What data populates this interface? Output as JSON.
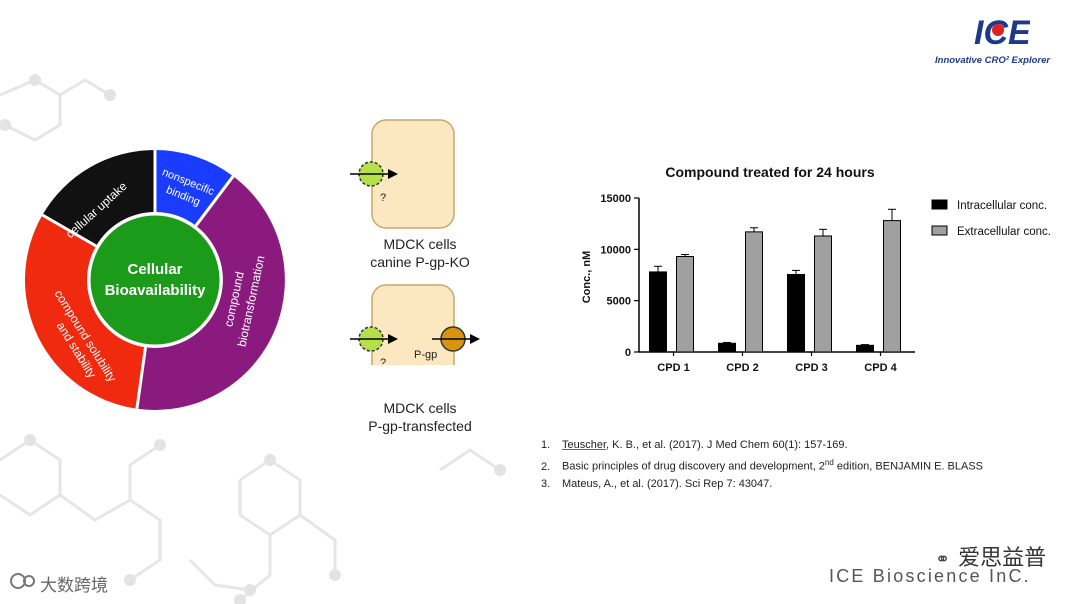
{
  "donut": {
    "center_line1": "Cellular",
    "center_line2": "Bioavailability",
    "segments": [
      {
        "label": "cellular uptake",
        "color": "#111111"
      },
      {
        "label": "nonspecific binding",
        "label_line1": "nonspecific",
        "label_line2": "binding",
        "color": "#1a3cff"
      },
      {
        "label": "compound biotransformation",
        "label_line1": "compound",
        "label_line2": "biotransformation",
        "color": "#8b1a7e"
      },
      {
        "label": "compound solubility and stability",
        "label_line1": "compound solubility",
        "label_line2": "and stability",
        "color": "#f02a0f"
      }
    ],
    "center_color": "#1c9a19"
  },
  "cells": [
    {
      "line1": "MDCK cells",
      "line2": "canine P-gp-KO",
      "question": "?"
    },
    {
      "line1": "MDCK cells",
      "line2": "P-gp-transfected",
      "question": "?",
      "pgp_label": "P-gp"
    }
  ],
  "chart_data": {
    "type": "bar",
    "title": "Compound treated for 24 hours",
    "ylabel": "Conc., nM",
    "xlabel": "",
    "categories": [
      "CPD 1",
      "CPD 2",
      "CPD 3",
      "CPD 4"
    ],
    "ylim": [
      0,
      15000
    ],
    "yticks": [
      "0",
      "5000",
      "10000",
      "15000"
    ],
    "series": [
      {
        "name": "Intracellular conc.",
        "color": "#000000",
        "values": [
          7800,
          850,
          7550,
          650
        ],
        "errors": [
          550,
          80,
          400,
          70
        ]
      },
      {
        "name": "Extracellular conc.",
        "color": "#a0a0a0",
        "values": [
          9300,
          11700,
          11300,
          12800
        ],
        "errors": [
          200,
          400,
          650,
          1100
        ]
      }
    ],
    "legend_position": "right"
  },
  "references": [
    {
      "num": "1.",
      "author": "Teuscher",
      "text": ", K. B., et al. (2017).  J Med Chem 60(1): 157-169."
    },
    {
      "num": "2.",
      "text_a": "Basic principles of drug discovery and development, 2",
      "sup": "nd",
      "text_b": " edition, BENJAMIN E. BLASS"
    },
    {
      "num": "3.",
      "text": "Mateus, A., et al. (2017). Sci Rep 7: 43047."
    }
  ],
  "logo": {
    "mark": "ICE",
    "tagline": "Innovative CRO² Explorer"
  },
  "footer": {
    "wechat_name": "爱思益普",
    "company": "ICE Bioscience InC.",
    "watermark": "大数跨境"
  }
}
